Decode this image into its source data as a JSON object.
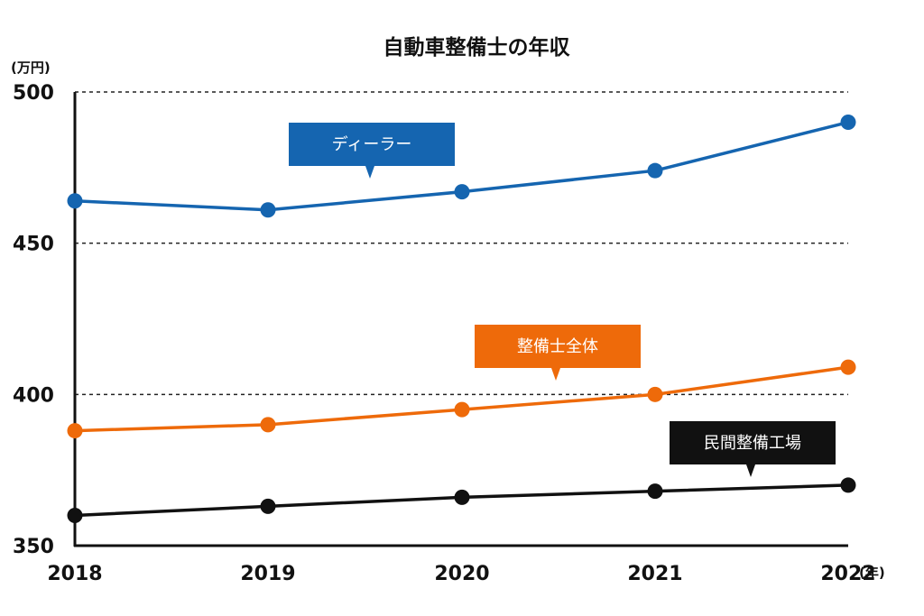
{
  "chart_data": {
    "type": "line",
    "title": "自動車整備士の年収",
    "ylabel": "(万円)",
    "xlabel": "(年)",
    "x": [
      "2018",
      "2019",
      "2020",
      "2021",
      "2022"
    ],
    "ylim": [
      350,
      500
    ],
    "yticks": [
      "350",
      "400",
      "450",
      "500"
    ],
    "grid": "dashed horizontal at 400, 450, 500",
    "series": [
      {
        "name": "ディーラー",
        "color": "#1565b0",
        "values": [
          464,
          461,
          467,
          474,
          490
        ]
      },
      {
        "name": "整備士全体",
        "color": "#ee6a0a",
        "values": [
          388,
          390,
          395,
          400,
          409
        ]
      },
      {
        "name": "民間整備工場",
        "color": "#111111",
        "values": [
          360,
          363,
          366,
          368,
          370
        ]
      }
    ]
  }
}
